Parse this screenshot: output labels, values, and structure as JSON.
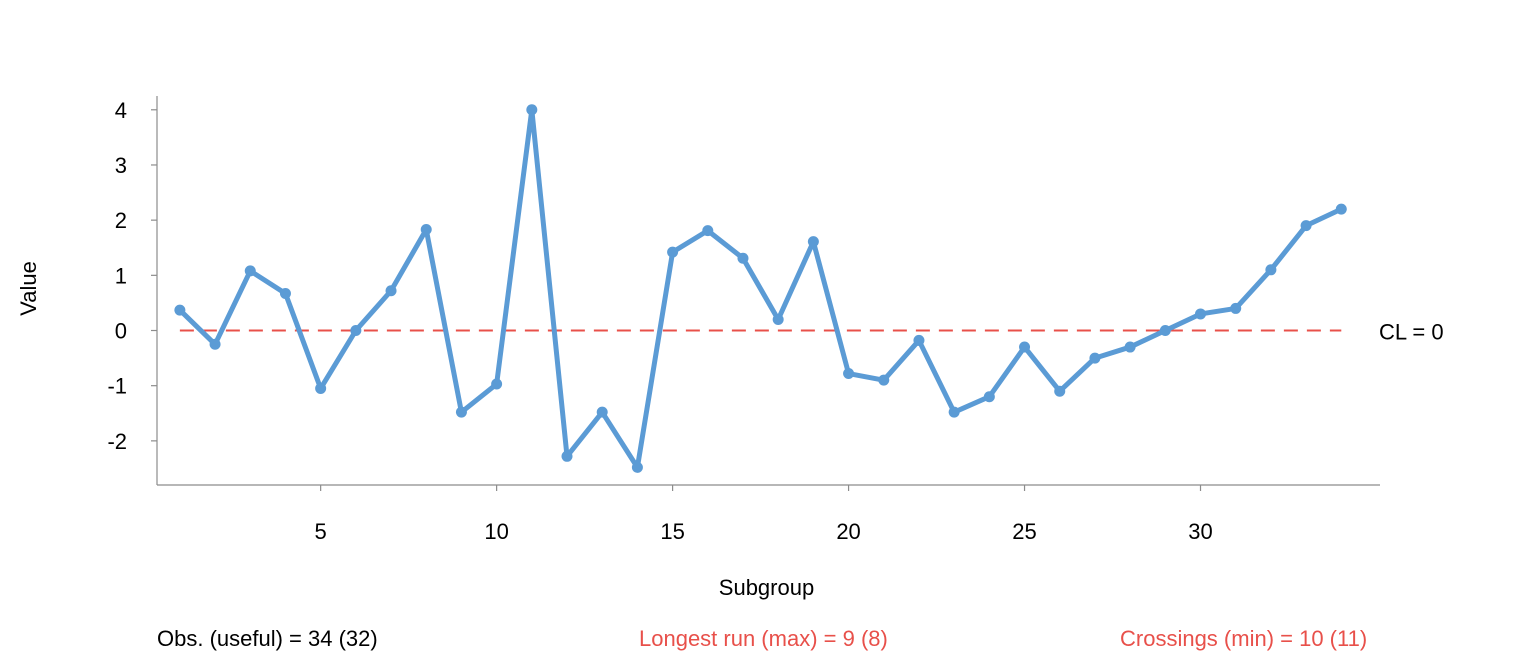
{
  "chart_data": {
    "type": "line",
    "xlabel": "Subgroup",
    "ylabel": "Value",
    "x": [
      1,
      2,
      3,
      4,
      5,
      6,
      7,
      8,
      9,
      10,
      11,
      12,
      13,
      14,
      15,
      16,
      17,
      18,
      19,
      20,
      21,
      22,
      23,
      24,
      25,
      26,
      27,
      28,
      29,
      30,
      31,
      32,
      33,
      34
    ],
    "series": [
      {
        "values": [
          0.37,
          -0.25,
          1.08,
          0.67,
          -1.05,
          0.0,
          0.72,
          1.83,
          -1.48,
          -0.97,
          4.0,
          -2.28,
          -1.48,
          -2.48,
          1.42,
          1.81,
          1.31,
          0.2,
          1.61,
          -0.78,
          -0.9,
          -0.18,
          -1.48,
          -1.2,
          -0.3,
          -1.1,
          -0.5,
          -0.3,
          0.0,
          0.3,
          0.4,
          1.1,
          1.9,
          2.2
        ],
        "color": "#5b9bd5"
      }
    ],
    "center_line": {
      "value": 0,
      "label": "CL = 0",
      "color": "#e8504a",
      "style": "dashed"
    },
    "xticks": [
      5,
      10,
      15,
      20,
      25,
      30
    ],
    "yticks": [
      -2,
      -1,
      0,
      1,
      2,
      3,
      4
    ],
    "xlim": [
      0.35,
      35.1
    ],
    "ylim": [
      -2.8,
      4.25
    ],
    "grid": false
  },
  "footer": {
    "obs_text": "Obs. (useful) = 34 (32)",
    "longest_run_text": "Longest run (max) = 9 (8)",
    "crossings_text": "Crossings (min) = 10 (11)",
    "obs_color": "#000000",
    "highlight_color": "#e8504a"
  }
}
